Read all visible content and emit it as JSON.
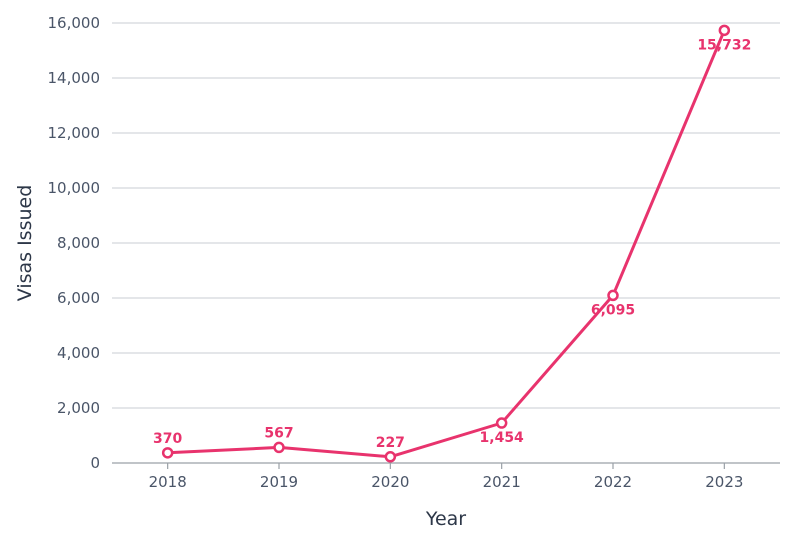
{
  "chart_data": {
    "type": "line",
    "title": "",
    "xlabel": "Year",
    "ylabel": "Visas Issued",
    "categories": [
      "2018",
      "2019",
      "2020",
      "2021",
      "2022",
      "2023"
    ],
    "series": [
      {
        "values": [
          370,
          567,
          227,
          1454,
          6095,
          15732
        ],
        "data_labels": [
          "370",
          "567",
          "227",
          "1,454",
          "6,095",
          "15,732"
        ]
      }
    ],
    "ylim": [
      0,
      16000
    ],
    "yticks": [
      0,
      2000,
      4000,
      6000,
      8000,
      10000,
      12000,
      14000,
      16000
    ],
    "ytick_labels": [
      "0",
      "2,000",
      "4,000",
      "6,000",
      "8,000",
      "10,000",
      "12,000",
      "14,000",
      "16,000"
    ],
    "grid": true,
    "colors": {
      "series": "#e8336d",
      "grid": "#c9cdd3",
      "axis": "#9aa0a6"
    }
  }
}
